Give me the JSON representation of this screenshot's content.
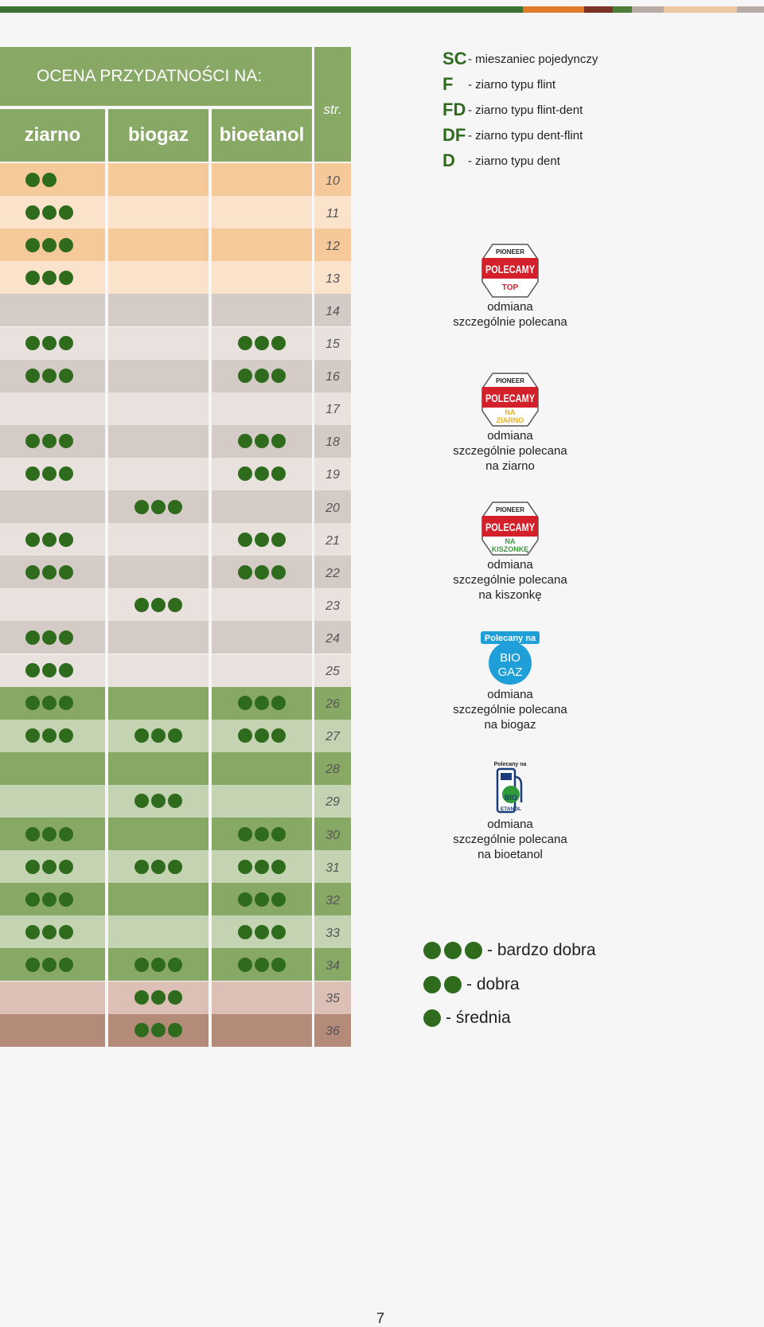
{
  "topbar_colors": [
    "#3a7232",
    "#3a7232",
    "#e07b2a",
    "#7a3324",
    "#4a7d36",
    "#b8aaa4",
    "#ecc9a3",
    "#b8aaa4"
  ],
  "table": {
    "title": "OCENA PRZYDATNOŚCI NA:",
    "columns": [
      "ziarno",
      "biogaz",
      "bioetanol"
    ],
    "page_col_label": "str.",
    "rows": [
      {
        "page": "10",
        "ziarno": 2,
        "biogaz": 0,
        "bioetanol": 0
      },
      {
        "page": "11",
        "ziarno": 3,
        "biogaz": 0,
        "bioetanol": 0
      },
      {
        "page": "12",
        "ziarno": 3,
        "biogaz": 0,
        "bioetanol": 0
      },
      {
        "page": "13",
        "ziarno": 3,
        "biogaz": 0,
        "bioetanol": 0
      },
      {
        "page": "14",
        "ziarno": 0,
        "biogaz": 0,
        "bioetanol": 0
      },
      {
        "page": "15",
        "ziarno": 3,
        "biogaz": 0,
        "bioetanol": 3
      },
      {
        "page": "16",
        "ziarno": 3,
        "biogaz": 0,
        "bioetanol": 3
      },
      {
        "page": "17",
        "ziarno": 0,
        "biogaz": 0,
        "bioetanol": 0
      },
      {
        "page": "18",
        "ziarno": 3,
        "biogaz": 0,
        "bioetanol": 3
      },
      {
        "page": "19",
        "ziarno": 3,
        "biogaz": 0,
        "bioetanol": 3
      },
      {
        "page": "20",
        "ziarno": 0,
        "biogaz": 3,
        "bioetanol": 0
      },
      {
        "page": "21",
        "ziarno": 3,
        "biogaz": 0,
        "bioetanol": 3
      },
      {
        "page": "22",
        "ziarno": 3,
        "biogaz": 0,
        "bioetanol": 3
      },
      {
        "page": "23",
        "ziarno": 0,
        "biogaz": 3,
        "bioetanol": 0
      },
      {
        "page": "24",
        "ziarno": 3,
        "biogaz": 0,
        "bioetanol": 0
      },
      {
        "page": "25",
        "ziarno": 3,
        "biogaz": 0,
        "bioetanol": 0
      },
      {
        "page": "26",
        "ziarno": 3,
        "biogaz": 0,
        "bioetanol": 3
      },
      {
        "page": "27",
        "ziarno": 3,
        "biogaz": 3,
        "bioetanol": 3
      },
      {
        "page": "28",
        "ziarno": 0,
        "biogaz": 0,
        "bioetanol": 0
      },
      {
        "page": "29",
        "ziarno": 0,
        "biogaz": 3,
        "bioetanol": 0
      },
      {
        "page": "30",
        "ziarno": 3,
        "biogaz": 0,
        "bioetanol": 3
      },
      {
        "page": "31",
        "ziarno": 3,
        "biogaz": 3,
        "bioetanol": 3
      },
      {
        "page": "32",
        "ziarno": 3,
        "biogaz": 0,
        "bioetanol": 3
      },
      {
        "page": "33",
        "ziarno": 3,
        "biogaz": 0,
        "bioetanol": 3
      },
      {
        "page": "34",
        "ziarno": 3,
        "biogaz": 3,
        "bioetanol": 3
      },
      {
        "page": "35",
        "ziarno": 0,
        "biogaz": 3,
        "bioetanol": 0
      },
      {
        "page": "36",
        "ziarno": 0,
        "biogaz": 3,
        "bioetanol": 0
      }
    ],
    "row_colors": [
      "#f6c99b",
      "#fbe3cb",
      "#f6c99b",
      "#fbe3cb",
      "#d4cac6",
      "#e8e1de",
      "#d4cac6",
      "#e8e1de",
      "#d4cac6",
      "#e8e1de",
      "#d4cac6",
      "#e8e1de",
      "#d4cac6",
      "#e8e1de",
      "#d4cac6",
      "#e8e1de",
      "#88a866",
      "#c4d3b1",
      "#88a866",
      "#c4d3b1",
      "#88a866",
      "#c4d3b1",
      "#88a866",
      "#c4d3b1",
      "#88a866",
      "#dcc0b6",
      "#b48a78"
    ],
    "dot_color": "#2f6b1d"
  },
  "grain_codes": [
    {
      "code": "SC",
      "desc": "- mieszaniec pojedynczy"
    },
    {
      "code": "F",
      "desc": "- ziarno typu flint"
    },
    {
      "code": "FD",
      "desc": "- ziarno typu flint-dent"
    },
    {
      "code": "DF",
      "desc": "- ziarno typu dent-flint"
    },
    {
      "code": "D",
      "desc": "- ziarno typu dent"
    }
  ],
  "badges": [
    {
      "icon": "polecamy-top-badge-icon",
      "logo_brand": "PIONEER",
      "logo_main": "POLECAMY",
      "logo_sub": "TOP",
      "lines": [
        "odmiana",
        "szczególnie polecana"
      ]
    },
    {
      "icon": "polecamy-na-ziarno-badge-icon",
      "logo_brand": "PIONEER",
      "logo_main": "POLECAMY",
      "logo_sub": "NA ZIARNO",
      "lines": [
        "odmiana",
        "szczególnie polecana",
        "na ziarno"
      ]
    },
    {
      "icon": "polecamy-na-kiszonke-badge-icon",
      "logo_brand": "PIONEER",
      "logo_main": "POLECAMY",
      "logo_sub": "NA KISZONKĘ",
      "lines": [
        "odmiana",
        "szczególnie polecana",
        "na kiszonkę"
      ]
    },
    {
      "icon": "polecany-na-biogaz-badge-icon",
      "logo_main": "Polecany na",
      "logo_sub": "BIO GAZ",
      "lines": [
        "odmiana",
        "szczególnie polecana",
        "na biogaz"
      ]
    },
    {
      "icon": "polecany-na-bioetanol-badge-icon",
      "logo_main": "Polecany na",
      "logo_sub": "BIO ETANOL",
      "lines": [
        "odmiana",
        "szczególnie polecana",
        "na bioetanol"
      ]
    }
  ],
  "rating_legend": [
    {
      "dots": 3,
      "label": "- bardzo dobra"
    },
    {
      "dots": 2,
      "label": "- dobra"
    },
    {
      "dots": 1,
      "label": "- średnia"
    }
  ],
  "page_number": "7"
}
